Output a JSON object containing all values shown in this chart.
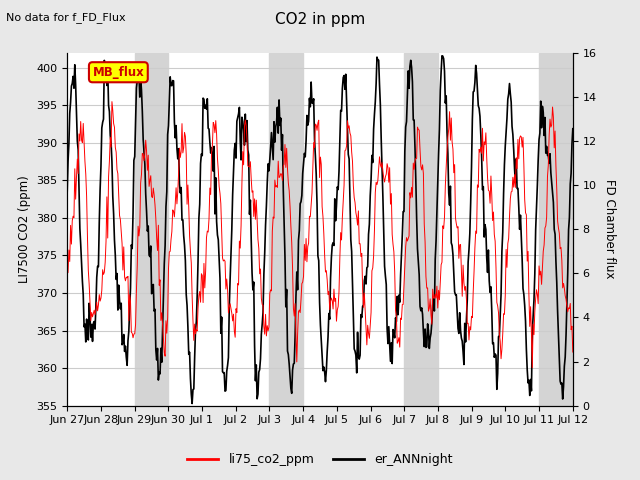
{
  "title": "CO2 in ppm",
  "top_left_text": "No data for f_FD_Flux",
  "ylabel_left": "LI7500 CO2 (ppm)",
  "ylabel_right": "FD Chamber flux",
  "ylim_left": [
    355,
    402
  ],
  "ylim_right": [
    0,
    16
  ],
  "yticks_left": [
    355,
    360,
    365,
    370,
    375,
    380,
    385,
    390,
    395,
    400
  ],
  "yticks_right": [
    0,
    2,
    4,
    6,
    8,
    10,
    12,
    14,
    16
  ],
  "xtick_labels": [
    "Jun 27",
    "Jun 28",
    "Jun 29",
    "Jun 30",
    "Jul 1",
    "Jul 2",
    "Jul 3",
    "Jul 4",
    "Jul 5",
    "Jul 6",
    "Jul 7",
    "Jul 8",
    "Jul 9",
    "Jul 10",
    "Jul 11",
    "Jul 12"
  ],
  "legend_labels": [
    "li75_co2_ppm",
    "er_ANNnight"
  ],
  "legend_colors": [
    "#ff0000",
    "#000000"
  ],
  "line_color_red": "#ff0000",
  "line_color_black": "#000000",
  "annotation_box_text": "MB_flux",
  "annotation_box_color": "#ffff00",
  "annotation_box_edge": "#cc0000",
  "annotation_box_text_color": "#cc0000",
  "background_color": "#e8e8e8",
  "plot_bg_color": "#ffffff",
  "stripe_color": "#d4d4d4",
  "grid_color": "#cccccc",
  "n_points": 600
}
